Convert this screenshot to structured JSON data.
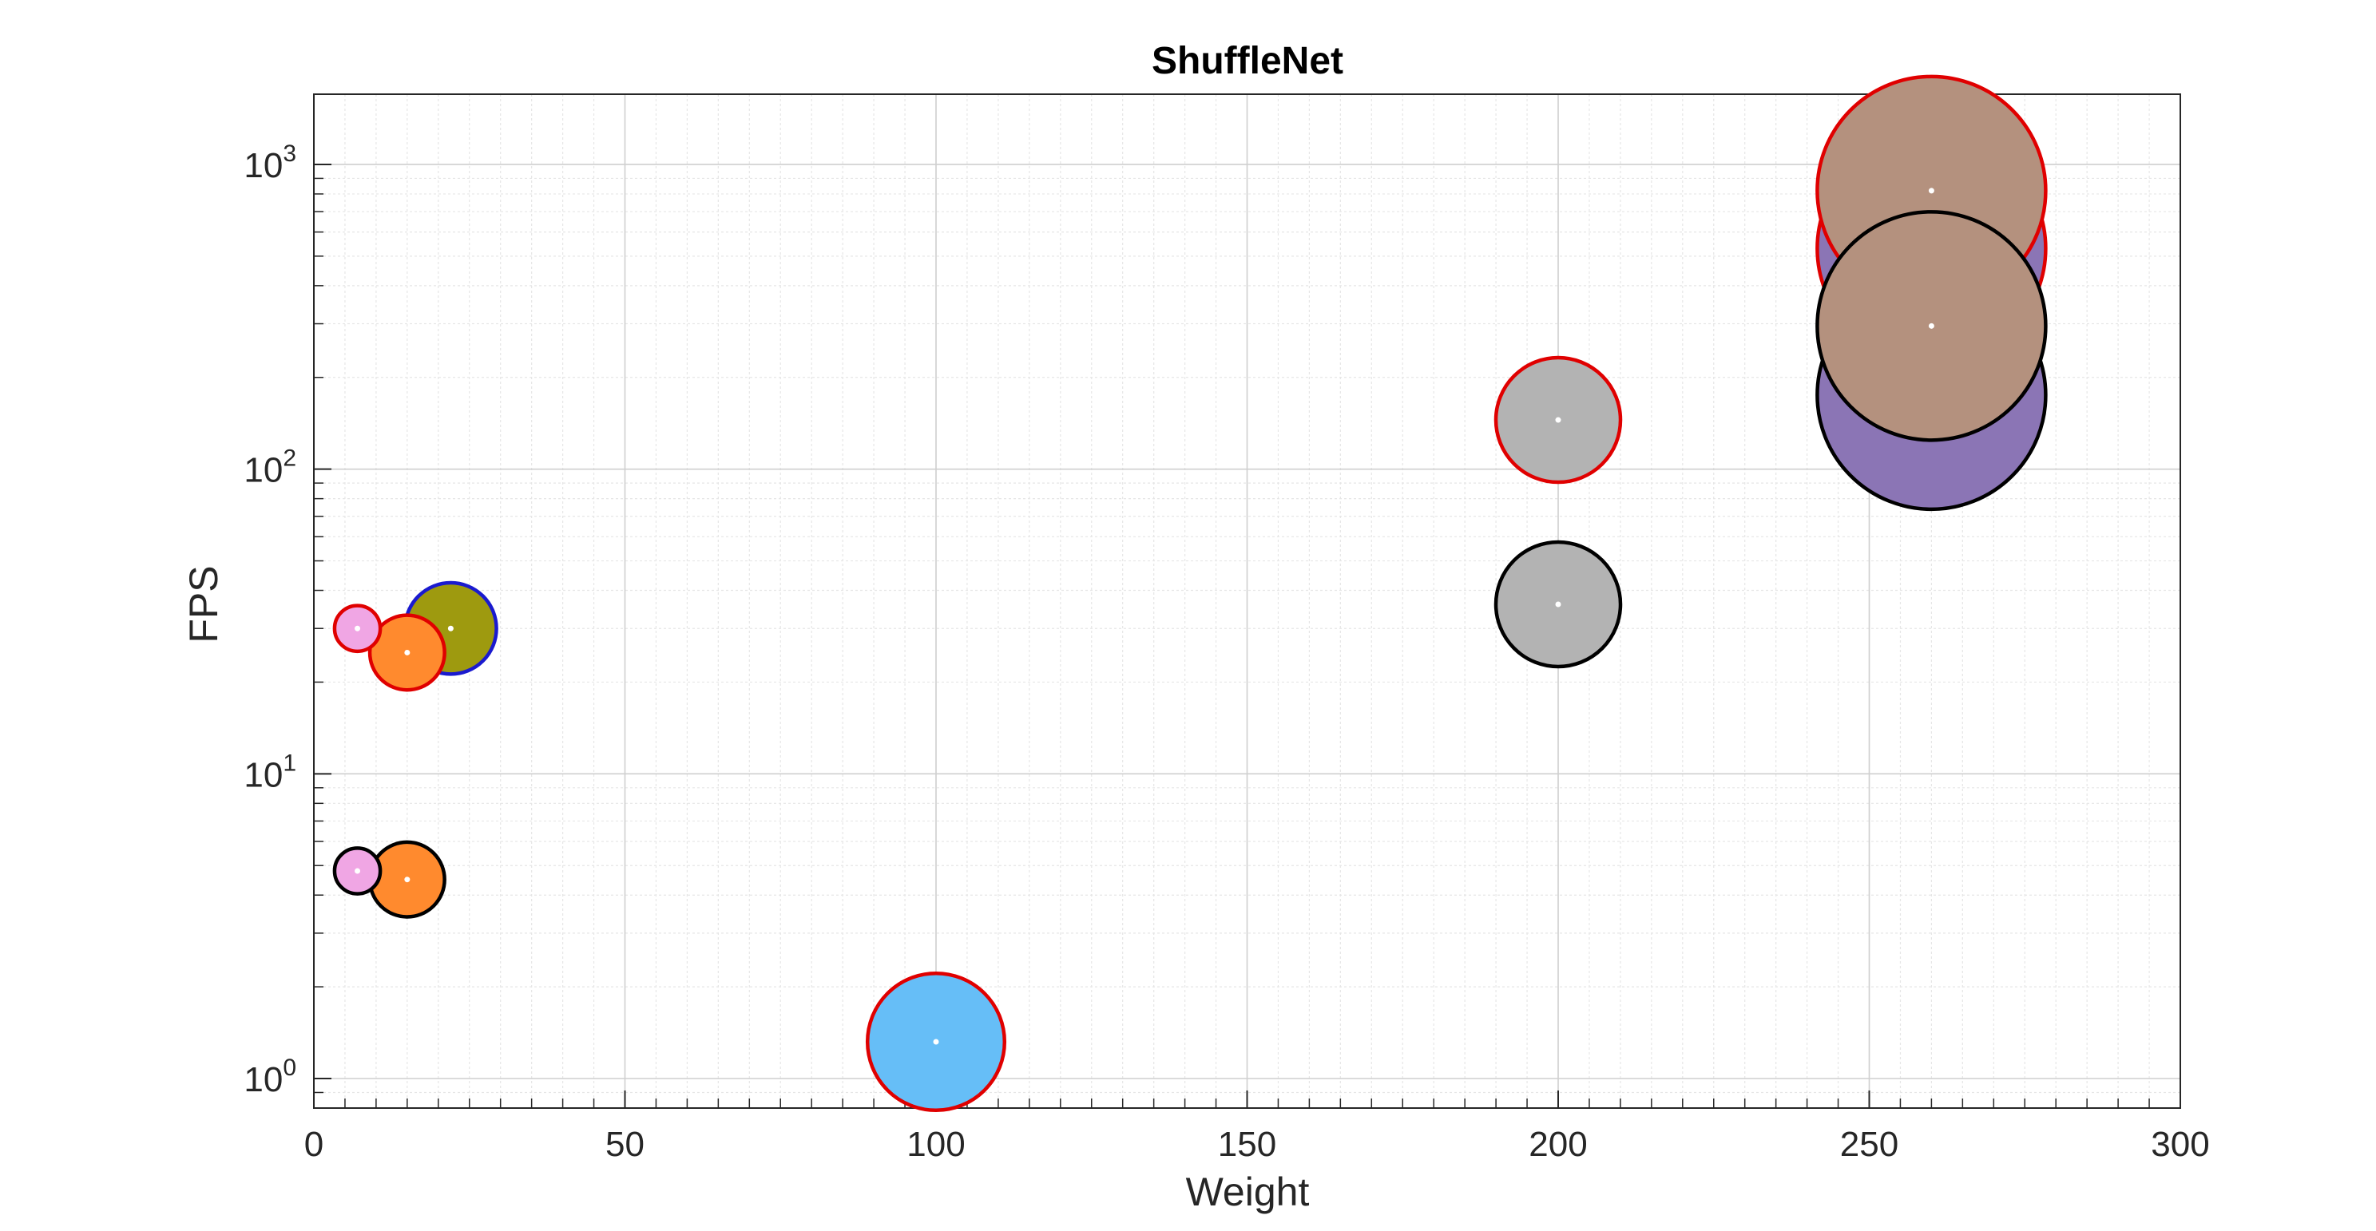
{
  "chart_data": {
    "type": "scatter",
    "title": "ShuffleNet",
    "xlabel": "Weight",
    "ylabel": "FPS",
    "xlim": [
      0,
      300
    ],
    "ylim": [
      0.8,
      1700
    ],
    "yscale": "log",
    "grid": true,
    "minor_grid": true,
    "x_ticks": [
      0,
      50,
      100,
      150,
      200,
      250,
      300
    ],
    "y_ticks": [
      {
        "base": "10",
        "exp": "0",
        "value": 1
      },
      {
        "base": "10",
        "exp": "1",
        "value": 10
      },
      {
        "base": "10",
        "exp": "2",
        "value": 100
      },
      {
        "base": "10",
        "exp": "3",
        "value": 1000
      }
    ],
    "points": [
      {
        "x": 260,
        "y": 175,
        "size": 55,
        "fill": "#8B75B5",
        "edge": "#000000"
      },
      {
        "x": 260,
        "y": 530,
        "size": 55,
        "fill": "#8B75B5",
        "edge": "#E00000"
      },
      {
        "x": 260,
        "y": 820,
        "size": 55,
        "fill": "#B4917E",
        "edge": "#E00000"
      },
      {
        "x": 260,
        "y": 295,
        "size": 55,
        "fill": "#B4917E",
        "edge": "#000000"
      },
      {
        "x": 200,
        "y": 145,
        "size": 30,
        "fill": "#B3B3B3",
        "edge": "#E00000"
      },
      {
        "x": 200,
        "y": 36,
        "size": 30,
        "fill": "#B3B3B3",
        "edge": "#000000"
      },
      {
        "x": 100,
        "y": 1.32,
        "size": 33,
        "fill": "#66BEF7",
        "edge": "#E00000"
      },
      {
        "x": 22,
        "y": 30,
        "size": 22,
        "fill": "#9E9A0F",
        "edge": "#1A1ACF"
      },
      {
        "x": 15,
        "y": 25,
        "size": 18,
        "fill": "#FF8A2E",
        "edge": "#E00000"
      },
      {
        "x": 7,
        "y": 30,
        "size": 11,
        "fill": "#F0A6E4",
        "edge": "#E00000"
      },
      {
        "x": 15,
        "y": 4.5,
        "size": 18,
        "fill": "#FF8A2E",
        "edge": "#000000"
      },
      {
        "x": 7,
        "y": 4.8,
        "size": 11,
        "fill": "#F0A6E4",
        "edge": "#000000"
      }
    ]
  }
}
